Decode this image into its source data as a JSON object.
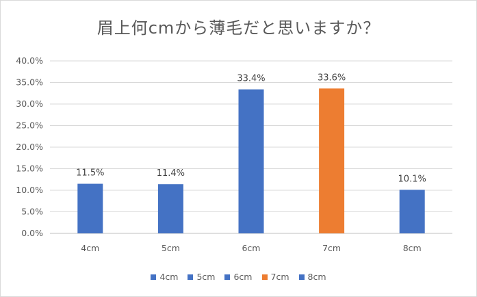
{
  "chart_data": {
    "type": "bar",
    "title": "眉上何cmから薄毛だと思いますか？",
    "categories": [
      "4cm",
      "5cm",
      "6cm",
      "7cm",
      "8cm"
    ],
    "values": [
      11.5,
      11.4,
      33.4,
      33.6,
      10.1
    ],
    "data_labels": [
      "11.5%",
      "11.4%",
      "33.4%",
      "33.6%",
      "10.1%"
    ],
    "colors": [
      "#4472c4",
      "#4472c4",
      "#4472c4",
      "#ed7d31",
      "#4472c4"
    ],
    "ylim": [
      0,
      40
    ],
    "yticks": [
      "0.0%",
      "5.0%",
      "10.0%",
      "15.0%",
      "20.0%",
      "25.0%",
      "30.0%",
      "35.0%",
      "40.0%"
    ],
    "grid": true,
    "legend_position": "bottom",
    "legend": [
      {
        "label": "4cm",
        "color": "#4472c4"
      },
      {
        "label": "5cm",
        "color": "#4472c4"
      },
      {
        "label": "6cm",
        "color": "#4472c4"
      },
      {
        "label": "7cm",
        "color": "#ed7d31"
      },
      {
        "label": "8cm",
        "color": "#4472c4"
      }
    ]
  }
}
